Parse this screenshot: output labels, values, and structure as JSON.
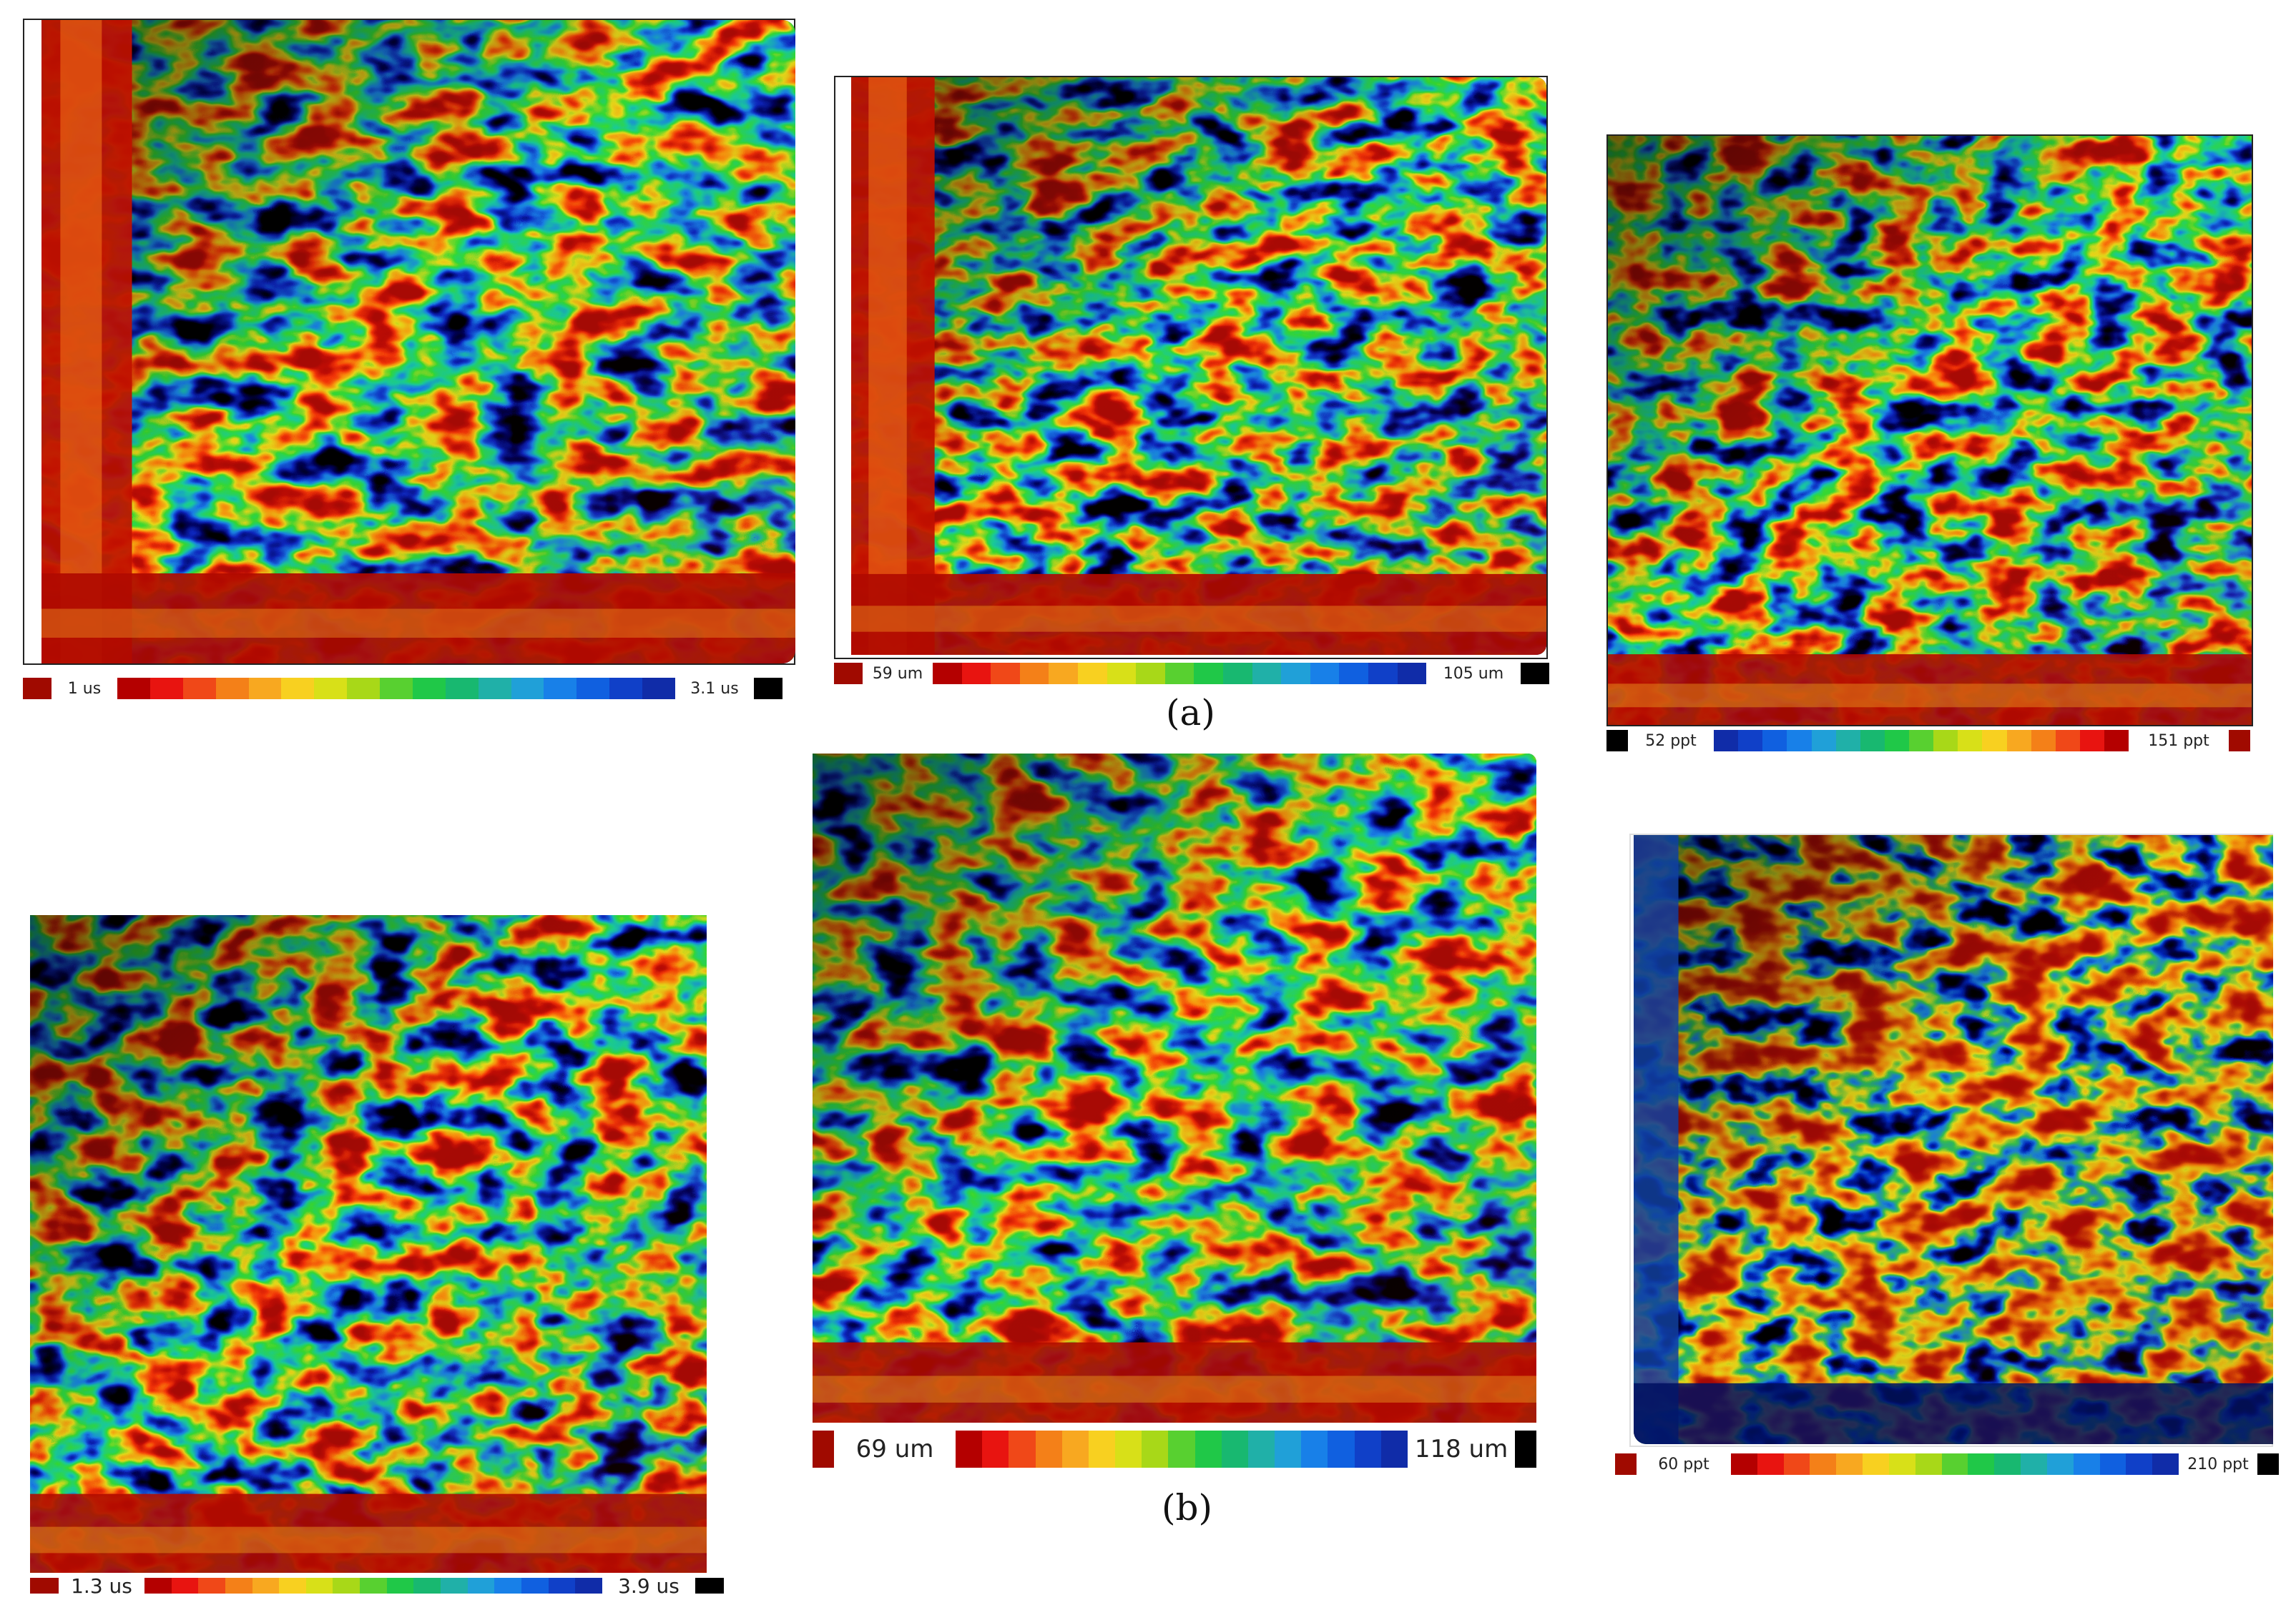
{
  "captions": {
    "a": "(a)",
    "b": "(b)"
  },
  "colors": {
    "dark_red": "#a00a00",
    "black": "#000000",
    "palette": [
      "#b40000",
      "#e81410",
      "#f04818",
      "#f48018",
      "#f8a820",
      "#f8d020",
      "#d8e018",
      "#a8d818",
      "#58d030",
      "#20c848",
      "#18b870",
      "#20b0a8",
      "#20a0d8",
      "#1880e8",
      "#1060e0",
      "#1040c8",
      "#102ca8"
    ]
  },
  "maps": [
    {
      "id": "a1",
      "scheme": "edge",
      "legend": {
        "min_label": "1 us",
        "max_label": "3.1 us",
        "direction": "red-to-blue",
        "min_swatch": "#a00a00",
        "max_swatch": "#000000"
      }
    },
    {
      "id": "a2",
      "scheme": "edge",
      "legend": {
        "min_label": "59 um",
        "max_label": "105 um",
        "direction": "red-to-blue",
        "min_swatch": "#a00a00",
        "max_swatch": "#000000"
      }
    },
    {
      "id": "a3",
      "scheme": "top",
      "legend": {
        "min_label": "52 ppt",
        "max_label": "151 ppt",
        "direction": "blue-to-red",
        "min_swatch": "#000000",
        "max_swatch": "#a00a00"
      }
    },
    {
      "id": "b1",
      "scheme": "top",
      "legend": {
        "min_label": "1.3 us",
        "max_label": "3.9 us",
        "direction": "red-to-blue",
        "min_swatch": "#a00a00",
        "max_swatch": "#000000"
      }
    },
    {
      "id": "b2",
      "scheme": "top",
      "legend": {
        "min_label": "69 um",
        "max_label": "118 um",
        "direction": "red-to-blue",
        "min_swatch": "#a00a00",
        "max_swatch": "#000000"
      }
    },
    {
      "id": "b3",
      "scheme": "inv",
      "legend": {
        "min_label": "60 ppt",
        "max_label": "210 ppt",
        "direction": "red-to-blue",
        "min_swatch": "#a00a00",
        "max_swatch": "#000000"
      }
    }
  ]
}
